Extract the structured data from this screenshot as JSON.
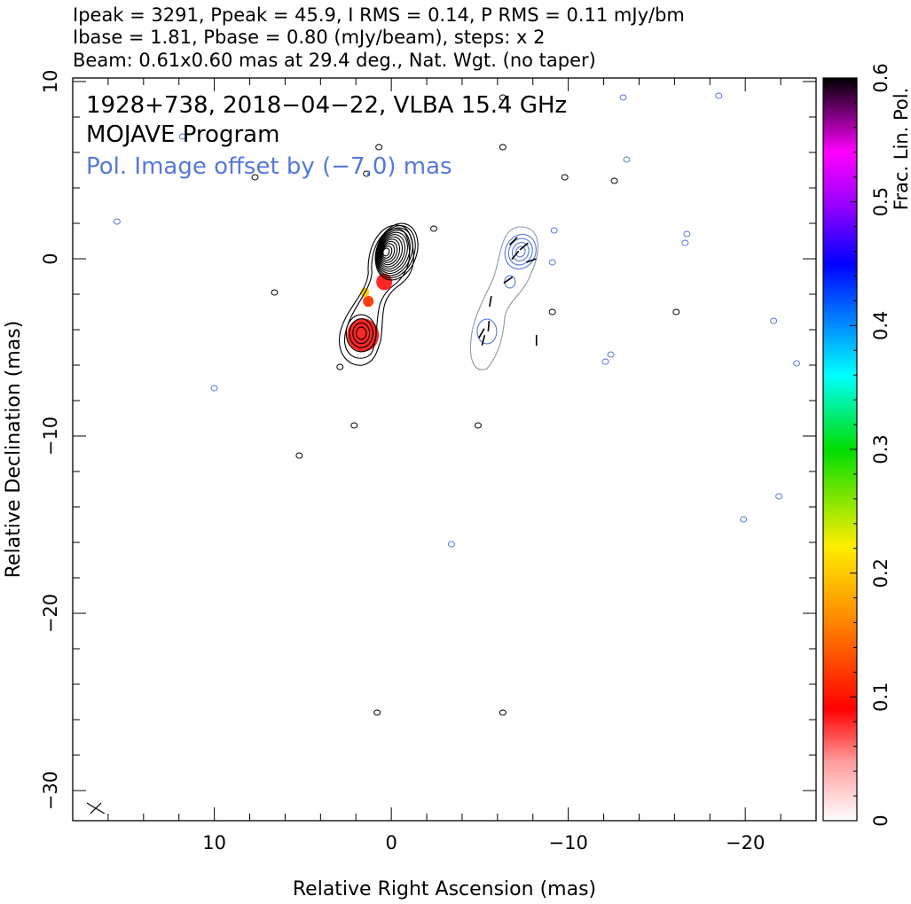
{
  "chart_data": {
    "type": "contour-map",
    "header_lines": [
      "Ipeak = 3291, Ppeak = 45.9, I RMS = 0.14, P RMS = 0.11 mJy/bm",
      "Ibase = 1.81, Pbase = 0.80 (mJy/beam), steps: x 2",
      "Beam: 0.61x0.60 mas at 29.4 deg., Nat. Wgt. (no taper)"
    ],
    "annotations": {
      "line1": "1928+738, 2018−04−22, VLBA 15.4 GHz",
      "line2": "MOJAVE Program",
      "line3": "Pol. Image offset by (−7,0) mas",
      "line3_color": "#5577dd"
    },
    "xlabel": "Relative Right Ascension (mas)",
    "ylabel": "Relative Declination (mas)",
    "xlim": [
      18,
      -24
    ],
    "ylim": [
      -31.7,
      10.2
    ],
    "x_ticks": [
      10,
      0,
      -10,
      -20
    ],
    "x_tick_labels": [
      "10",
      "0",
      "−10",
      "−20"
    ],
    "y_ticks": [
      10,
      0,
      -10,
      -20,
      -30
    ],
    "y_tick_labels": [
      "10",
      "0",
      "−10",
      "−20",
      "−30"
    ],
    "colorbar": {
      "label": "Frac. Lin. Pol.",
      "range": [
        0,
        0.6
      ],
      "ticks": [
        0,
        0.1,
        0.2,
        0.3,
        0.4,
        0.5,
        0.6
      ],
      "tick_labels": [
        "0",
        "0.1",
        "0.2",
        "0.3",
        "0.4",
        "0.5",
        "0.6"
      ]
    },
    "stokes_i_contours": {
      "color": "#000000",
      "core_center": [
        -0.3,
        0.4
      ],
      "core_levels": 12,
      "jet_knot_center": [
        1.7,
        -4.2
      ],
      "jet_knot_levels": 4
    },
    "frac_pol_blobs": [
      {
        "x": 1.6,
        "y": -4.3,
        "r": 0.9,
        "value": 0.08
      },
      {
        "x": 0.4,
        "y": -1.3,
        "r": 0.45,
        "value": 0.07
      },
      {
        "x": 1.3,
        "y": -2.4,
        "r": 0.3,
        "value": 0.1
      },
      {
        "x": 1.5,
        "y": -1.9,
        "r": 0.25,
        "value": 0.24
      }
    ],
    "pol_contours": {
      "color": "#5577dd",
      "outer_color": "#8899aa",
      "center": [
        -7.3,
        0.4
      ],
      "levels": 4
    },
    "beam": {
      "x": 16.7,
      "y": -31,
      "size": 0.6,
      "angle": 29.4
    },
    "noise_contours": [
      {
        "x": 15.5,
        "y": 2.1,
        "c": "blue"
      },
      {
        "x": 11.8,
        "y": 6.9,
        "c": "blue"
      },
      {
        "x": 10,
        "y": -7.3,
        "c": "blue"
      },
      {
        "x": 7.7,
        "y": 4.6,
        "c": "black"
      },
      {
        "x": 6.6,
        "y": -1.9,
        "c": "black"
      },
      {
        "x": 5.2,
        "y": -11.1,
        "c": "black"
      },
      {
        "x": 2.1,
        "y": -9.4,
        "c": "black"
      },
      {
        "x": 0.7,
        "y": 6.3,
        "c": "black"
      },
      {
        "x": 1.4,
        "y": 4.8,
        "c": "black"
      },
      {
        "x": -2.4,
        "y": 1.7,
        "c": "black"
      },
      {
        "x": 2.9,
        "y": -6.1,
        "c": "black"
      },
      {
        "x": -3.4,
        "y": -16.1,
        "c": "blue"
      },
      {
        "x": -4.9,
        "y": -9.4,
        "c": "black"
      },
      {
        "x": -6.3,
        "y": 6.3,
        "c": "black"
      },
      {
        "x": -6.3,
        "y": 9.1,
        "c": "black"
      },
      {
        "x": -9.1,
        "y": -3,
        "c": "black"
      },
      {
        "x": -9.2,
        "y": 1.6,
        "c": "blue"
      },
      {
        "x": -9.1,
        "y": -0.2,
        "c": "blue"
      },
      {
        "x": -9.8,
        "y": 4.6,
        "c": "black"
      },
      {
        "x": -12.1,
        "y": -5.8,
        "c": "blue"
      },
      {
        "x": -12.4,
        "y": -5.4,
        "c": "blue"
      },
      {
        "x": -12.6,
        "y": 4.4,
        "c": "black"
      },
      {
        "x": -13.1,
        "y": 9.1,
        "c": "blue"
      },
      {
        "x": -13.3,
        "y": 5.6,
        "c": "blue"
      },
      {
        "x": -16.1,
        "y": -3,
        "c": "black"
      },
      {
        "x": -16.7,
        "y": 1.4,
        "c": "blue"
      },
      {
        "x": -16.6,
        "y": 0.9,
        "c": "blue"
      },
      {
        "x": -18.5,
        "y": 9.2,
        "c": "blue"
      },
      {
        "x": -19.9,
        "y": -14.7,
        "c": "blue"
      },
      {
        "x": -21.6,
        "y": -3.5,
        "c": "blue"
      },
      {
        "x": -21.9,
        "y": -13.4,
        "c": "blue"
      },
      {
        "x": -22.9,
        "y": -5.9,
        "c": "blue"
      },
      {
        "x": 0.8,
        "y": -25.6,
        "c": "black"
      },
      {
        "x": -6.3,
        "y": -25.6,
        "c": "black"
      }
    ]
  }
}
